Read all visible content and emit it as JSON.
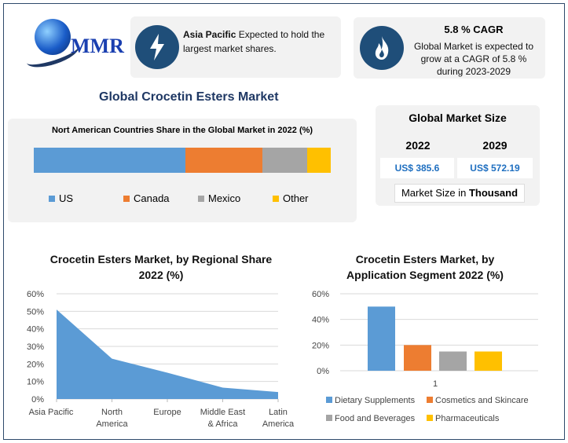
{
  "logo": {
    "text": "MMR"
  },
  "card1": {
    "bold": "Asia Pacific",
    "text": " Expected to hold the largest market shares.",
    "icon": "lightning-icon"
  },
  "card2": {
    "title": "5.8 % CAGR",
    "text": "Global Market is expected to grow at a CAGR of 5.8 % during 2023-2029",
    "icon": "flame-icon"
  },
  "main_title": "Global Crocetin Esters Market",
  "market_size": {
    "title": "Global Market Size",
    "years": [
      "2022",
      "2029"
    ],
    "values": [
      "US$ 385.6",
      "US$ 572.19"
    ],
    "note_prefix": "Market Size in ",
    "note_bold": "Thousand"
  },
  "chart_data": [
    {
      "type": "bar",
      "stacked": true,
      "orientation": "horizontal",
      "title": "Nort American Countries Share in the Global Market in 2022 (%)",
      "series": [
        {
          "name": "US",
          "values": [
            51
          ],
          "color": "#5b9bd5"
        },
        {
          "name": "Canada",
          "values": [
            26
          ],
          "color": "#ed7d31"
        },
        {
          "name": "Mexico",
          "values": [
            15
          ],
          "color": "#a5a5a5"
        },
        {
          "name": "Other",
          "values": [
            8
          ],
          "color": "#ffc000"
        }
      ],
      "legend": "bottom"
    },
    {
      "type": "area",
      "title": "Crocetin Esters Market, by Regional Share 2022 (%)",
      "categories": [
        "Asia Pacific",
        "North America",
        "Europe",
        "Middle East & Africa",
        "Latin America"
      ],
      "category_lines": [
        [
          "Asia Pacific"
        ],
        [
          "North",
          "America"
        ],
        [
          "Europe"
        ],
        [
          "Middle East",
          "& Africa"
        ],
        [
          "Latin",
          "America"
        ]
      ],
      "values": [
        51,
        23,
        15,
        6.5,
        4
      ],
      "ylim": [
        0,
        60
      ],
      "yticks": [
        "0%",
        "10%",
        "20%",
        "30%",
        "40%",
        "50%",
        "60%"
      ],
      "color": "#5b9bd5",
      "grid": true
    },
    {
      "type": "bar",
      "title": "Crocetin Esters Market, by Application Segment 2022 (%)",
      "categories": [
        "1"
      ],
      "series": [
        {
          "name": "Dietary Supplements",
          "values": [
            50
          ],
          "color": "#5b9bd5"
        },
        {
          "name": "Cosmetics and Skincare",
          "values": [
            20
          ],
          "color": "#ed7d31"
        },
        {
          "name": "Food and Beverages",
          "values": [
            15
          ],
          "color": "#a5a5a5"
        },
        {
          "name": "Pharmaceuticals",
          "values": [
            15
          ],
          "color": "#ffc000"
        }
      ],
      "ylim": [
        0,
        60
      ],
      "yticks": [
        "0%",
        "20%",
        "40%",
        "60%"
      ],
      "grid": true,
      "legend": "bottom"
    }
  ]
}
